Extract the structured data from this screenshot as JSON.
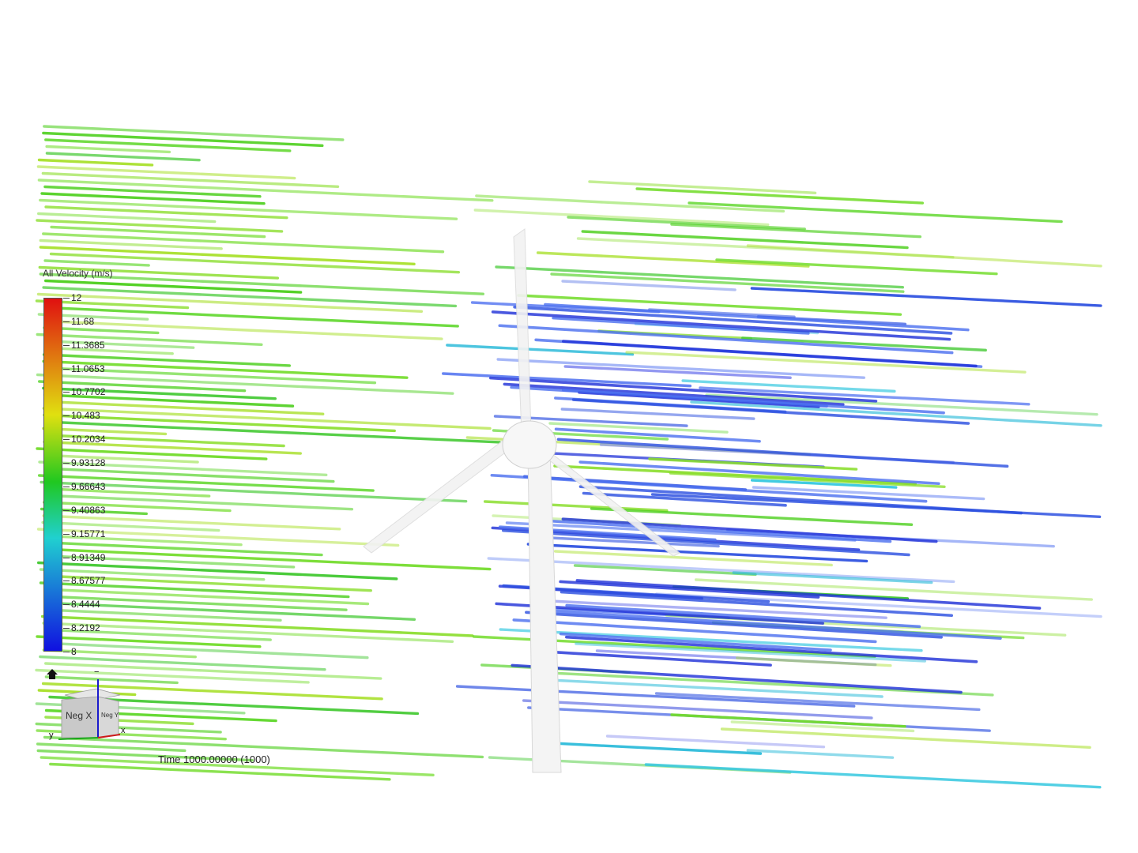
{
  "legend": {
    "title": "All Velocity (m/s)",
    "labels": [
      "12",
      "11.68",
      "11.3685",
      "11.0653",
      "10.7702",
      "10.483",
      "10.2034",
      "9.93128",
      "9.66643",
      "9.40863",
      "9.15771",
      "8.91349",
      "8.67577",
      "8.4444",
      "8.2192",
      "8"
    ],
    "colors": {
      "max": "#e01010",
      "mid_high": "#e0e010",
      "mid": "#20c820",
      "mid_low": "#20d0d0",
      "min": "#1010e0"
    }
  },
  "view_cube": {
    "front_label": "Neg X",
    "side_label": "Neg Y",
    "axis_x": "x",
    "axis_y": "y",
    "axis_z": "−"
  },
  "time_label": "Time 1000.00000 (1000)",
  "icons": {
    "home": "home-icon"
  }
}
